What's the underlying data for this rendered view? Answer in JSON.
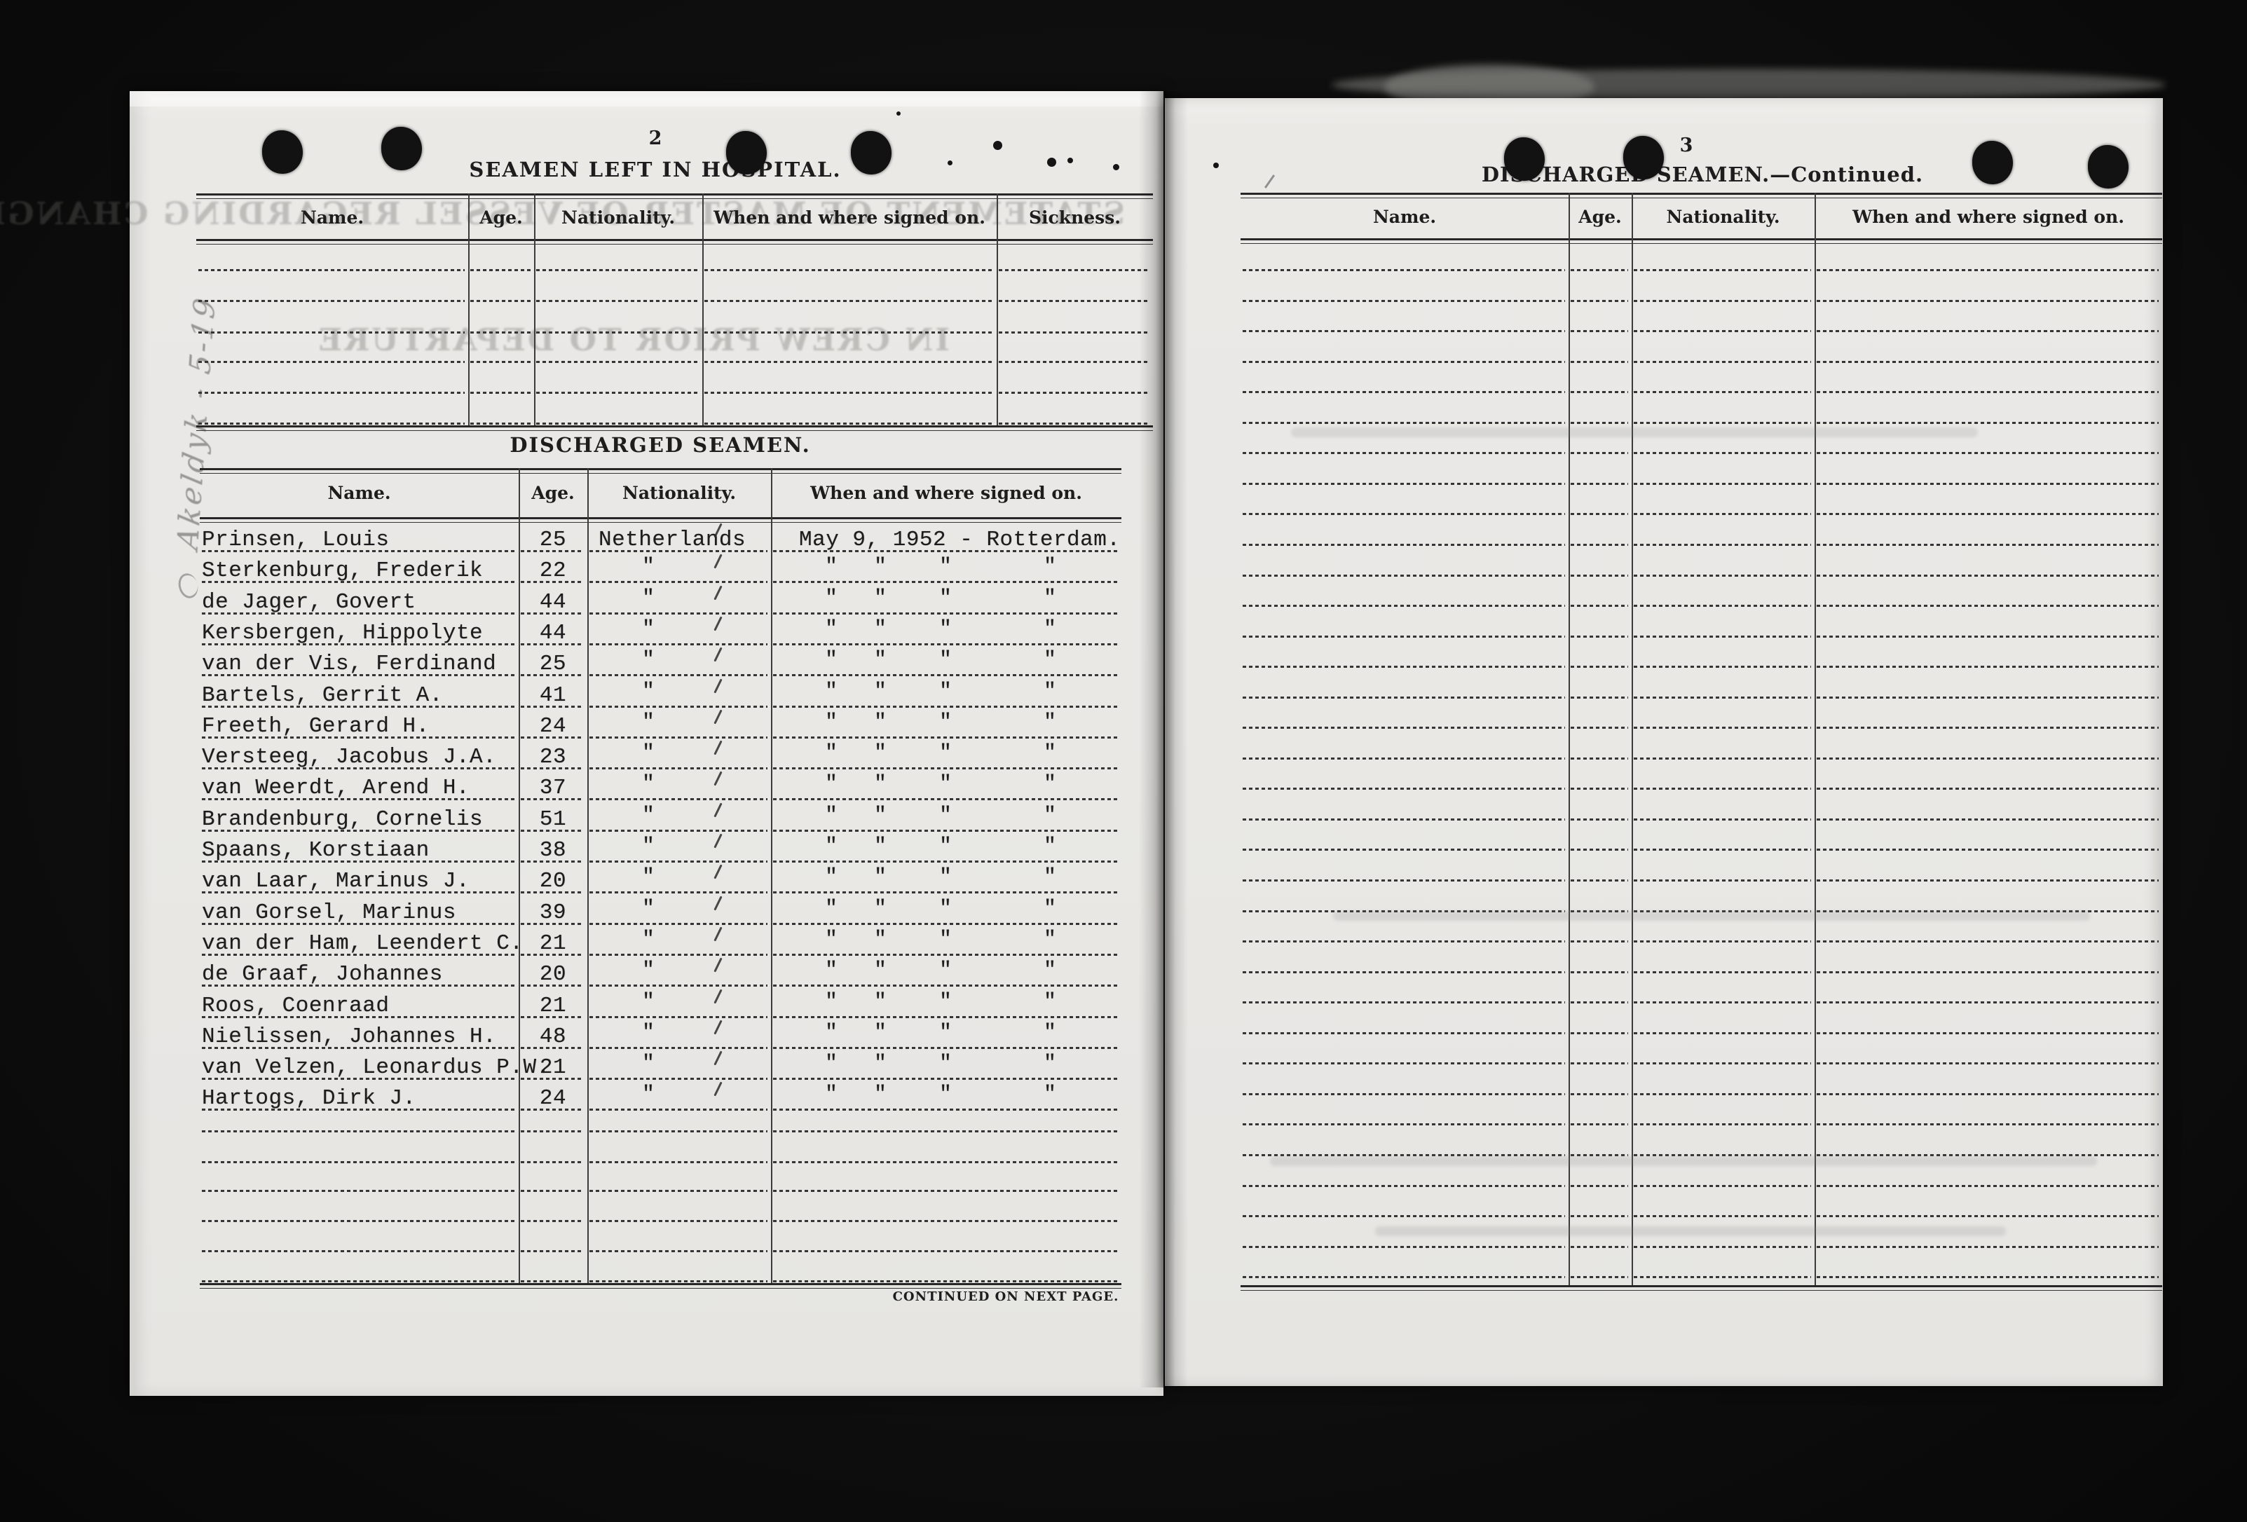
{
  "colors": {
    "paper": "#e9e8e5",
    "ink": "#1d1d1d",
    "typewriter_ink": "#1c1c1c",
    "surround": "#0b0b0b"
  },
  "margin_note": "Akeldyk - 5-19",
  "left_page": {
    "page_number": "2",
    "hospital_table": {
      "title": "SEAMEN LEFT IN HOSPITAL.",
      "columns": [
        "Name.",
        "Age.",
        "Nationality.",
        "When and where signed on.",
        "Sickness."
      ],
      "empty_rows": 6
    },
    "bleedthrough": {
      "line1": "STATEMENT OF MASTER OF VESSEL REGARDING CHANGES",
      "line2": "IN CREW PRIOR TO DEPARTURE"
    },
    "discharged_table": {
      "title": "DISCHARGED SEAMEN.",
      "columns": [
        "Name.",
        "Age.",
        "Nationality.",
        "When and where signed on."
      ],
      "rows": [
        {
          "name": "Prinsen, Louis",
          "age": "25",
          "nationality": "Netherlands",
          "signed": "May 9, 1952 - Rotterdam."
        },
        {
          "name": "Sterkenburg, Frederik",
          "age": "22",
          "nationality": "\"",
          "signed": "\" \" \" \""
        },
        {
          "name": "de Jager, Govert",
          "age": "44",
          "nationality": "\"",
          "signed": "\" \" \" \""
        },
        {
          "name": "Kersbergen, Hippolyte",
          "age": "44",
          "nationality": "\"",
          "signed": "\" \" \" \""
        },
        {
          "name": "van der Vis, Ferdinand",
          "age": "25",
          "nationality": "\"",
          "signed": "\" \" \" \""
        },
        {
          "name": "Bartels, Gerrit A.",
          "age": "41",
          "nationality": "\"",
          "signed": "\" \" \" \""
        },
        {
          "name": "Freeth, Gerard H.",
          "age": "24",
          "nationality": "\"",
          "signed": "\" \" \" \""
        },
        {
          "name": "Versteeg, Jacobus J.A.",
          "age": "23",
          "nationality": "\"",
          "signed": "\" \" \" \""
        },
        {
          "name": "van Weerdt, Arend H.",
          "age": "37",
          "nationality": "\"",
          "signed": "\" \" \" \""
        },
        {
          "name": "Brandenburg, Cornelis",
          "age": "51",
          "nationality": "\"",
          "signed": "\" \" \" \""
        },
        {
          "name": "Spaans, Korstiaan",
          "age": "38",
          "nationality": "\"",
          "signed": "\" \" \" \""
        },
        {
          "name": "van Laar, Marinus J.",
          "age": "20",
          "nationality": "\"",
          "signed": "\" \" \" \""
        },
        {
          "name": "van Gorsel, Marinus",
          "age": "39",
          "nationality": "\"",
          "signed": "\" \" \" \""
        },
        {
          "name": "van der Ham, Leendert C.",
          "age": "21",
          "nationality": "\"",
          "signed": "\" \" \" \""
        },
        {
          "name": "de Graaf, Johannes",
          "age": "20",
          "nationality": "\"",
          "signed": "\" \" \" \""
        },
        {
          "name": "Roos, Coenraad",
          "age": "21",
          "nationality": "\"",
          "signed": "\" \" \" \""
        },
        {
          "name": "Nielissen, Johannes H.",
          "age": "48",
          "nationality": "\"",
          "signed": "\" \" \" \""
        },
        {
          "name": "van Velzen, Leonardus P.W.",
          "age": "21",
          "nationality": "\"",
          "signed": "\" \" \" \""
        },
        {
          "name": "Hartogs, Dirk J.",
          "age": "24",
          "nationality": "\"",
          "signed": "\" \" \" \""
        }
      ],
      "empty_rows": 6,
      "footer": "CONTINUED ON NEXT PAGE."
    }
  },
  "right_page": {
    "page_number": "3",
    "title": "DISCHARGED SEAMEN.—Continued.",
    "columns": [
      "Name.",
      "Age.",
      "Nationality.",
      "When and where signed on."
    ],
    "empty_rows": 34
  }
}
